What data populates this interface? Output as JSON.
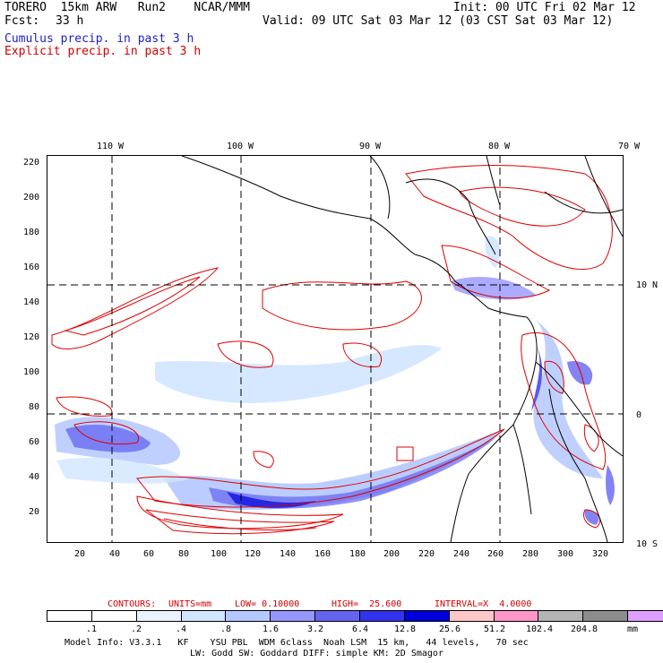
{
  "header": {
    "model": "TORERO  15km ARW   Run2    NCAR/MMM",
    "init": "Init: 00 UTC Fri 02 Mar 12",
    "fcst_label": "Fcst:",
    "fcst_value": "33 h",
    "valid": "Valid: 09 UTC Sat 03 Mar 12 (03 CST Sat 03 Mar 12)",
    "cumulus_legend": "Cumulus precip. in past 3 h",
    "explicit_legend": "Explicit precip. in past 3 h",
    "colors": {
      "cumulus": "#1d1dc8",
      "explicit": "#d20000",
      "text": "#000000"
    }
  },
  "map": {
    "lon_labels": [
      "110 W",
      "100 W",
      "90 W",
      "80 W",
      "70 W"
    ],
    "lat_labels": [
      "10 N",
      "0",
      "10 S"
    ],
    "y_ticks": [
      "220",
      "200",
      "180",
      "160",
      "140",
      "120",
      "100",
      "80",
      "60",
      "40",
      "20"
    ],
    "x_ticks": [
      "20",
      "40",
      "60",
      "80",
      "100",
      "120",
      "140",
      "160",
      "180",
      "200",
      "220",
      "240",
      "260",
      "280",
      "300",
      "320"
    ],
    "contour_color": "#e00000",
    "coast_color": "#000000"
  },
  "contour_info": {
    "contours": "CONTOURS:",
    "units": "UNITS=mm",
    "low": "LOW= 0.10000",
    "high": "HIGH=  25.600",
    "interval": "INTERVAL=X  4.0000"
  },
  "colorbar": {
    "colors": [
      "#ffffff",
      "#ffffff",
      "#eaf2ff",
      "#d2e6ff",
      "#b4c8ff",
      "#9696ff",
      "#6464f0",
      "#3232f0",
      "#0000dc",
      "#ffc8c8",
      "#ff96c8",
      "#b4b4b4",
      "#8c8c8c",
      "#dca0ff"
    ],
    "labels": [
      ".1",
      ".2",
      ".4",
      ".8",
      "1.6",
      "3.2",
      "6.4",
      "12.8",
      "25.6",
      "51.2",
      "102.4",
      "204.8"
    ],
    "unit": "mm"
  },
  "footer": {
    "line1": "Model Info: V3.3.1   KF    YSU PBL  WDM 6class  Noah LSM  15 km,   44 levels,   70 sec",
    "line2": "LW: Godd SW: Goddard DIFF: simple KM: 2D Smagor"
  }
}
